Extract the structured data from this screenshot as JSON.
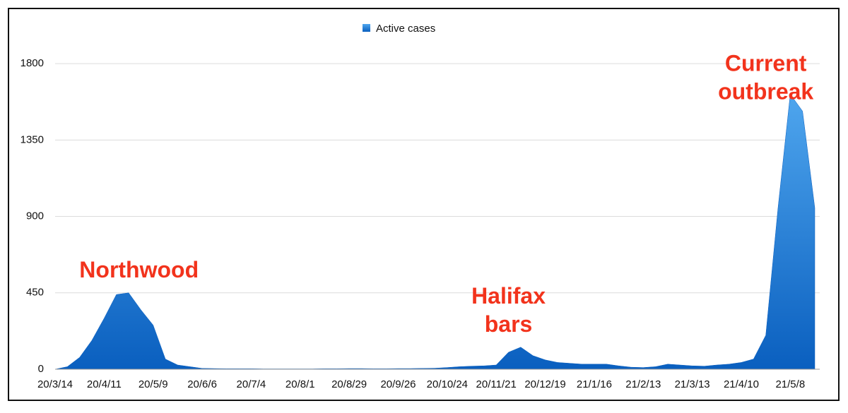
{
  "chart_data": {
    "type": "area",
    "legend": "Active cases",
    "categories": [
      "20/3/14",
      null,
      null,
      null,
      "20/4/11",
      null,
      null,
      null,
      "20/5/9",
      null,
      null,
      null,
      "20/6/6",
      null,
      null,
      null,
      "20/7/4",
      null,
      null,
      null,
      "20/8/1",
      null,
      null,
      null,
      "20/8/29",
      null,
      null,
      null,
      "20/9/26",
      null,
      null,
      null,
      "20/10/24",
      null,
      null,
      null,
      "20/11/21",
      null,
      null,
      null,
      "20/12/19",
      null,
      null,
      null,
      "21/1/16",
      null,
      null,
      null,
      "21/2/13",
      null,
      null,
      null,
      "21/3/13",
      null,
      null,
      null,
      "21/4/10",
      null,
      null,
      null,
      "21/5/8",
      null,
      null
    ],
    "values": [
      0,
      15,
      70,
      170,
      300,
      440,
      450,
      350,
      260,
      60,
      25,
      15,
      5,
      4,
      3,
      3,
      3,
      2,
      2,
      2,
      2,
      2,
      3,
      3,
      4,
      4,
      3,
      3,
      4,
      4,
      5,
      6,
      10,
      15,
      18,
      20,
      25,
      100,
      130,
      80,
      55,
      40,
      35,
      30,
      30,
      30,
      20,
      12,
      10,
      15,
      30,
      25,
      20,
      18,
      25,
      30,
      40,
      60,
      200,
      950,
      1620,
      1520,
      950
    ],
    "color_top": "#4fa6ee",
    "color_bottom": "#0a5fbf",
    "ylim": [
      0,
      2050
    ],
    "yticks": [
      0,
      450,
      900,
      1350,
      1800
    ],
    "grid": true,
    "annotations": [
      {
        "lines": [
          "Northwood"
        ],
        "at": 8
      },
      {
        "lines": [
          "Halifax",
          "bars"
        ],
        "at": 37
      },
      {
        "lines": [
          "Current",
          "outbreak"
        ],
        "at": 58
      }
    ]
  }
}
